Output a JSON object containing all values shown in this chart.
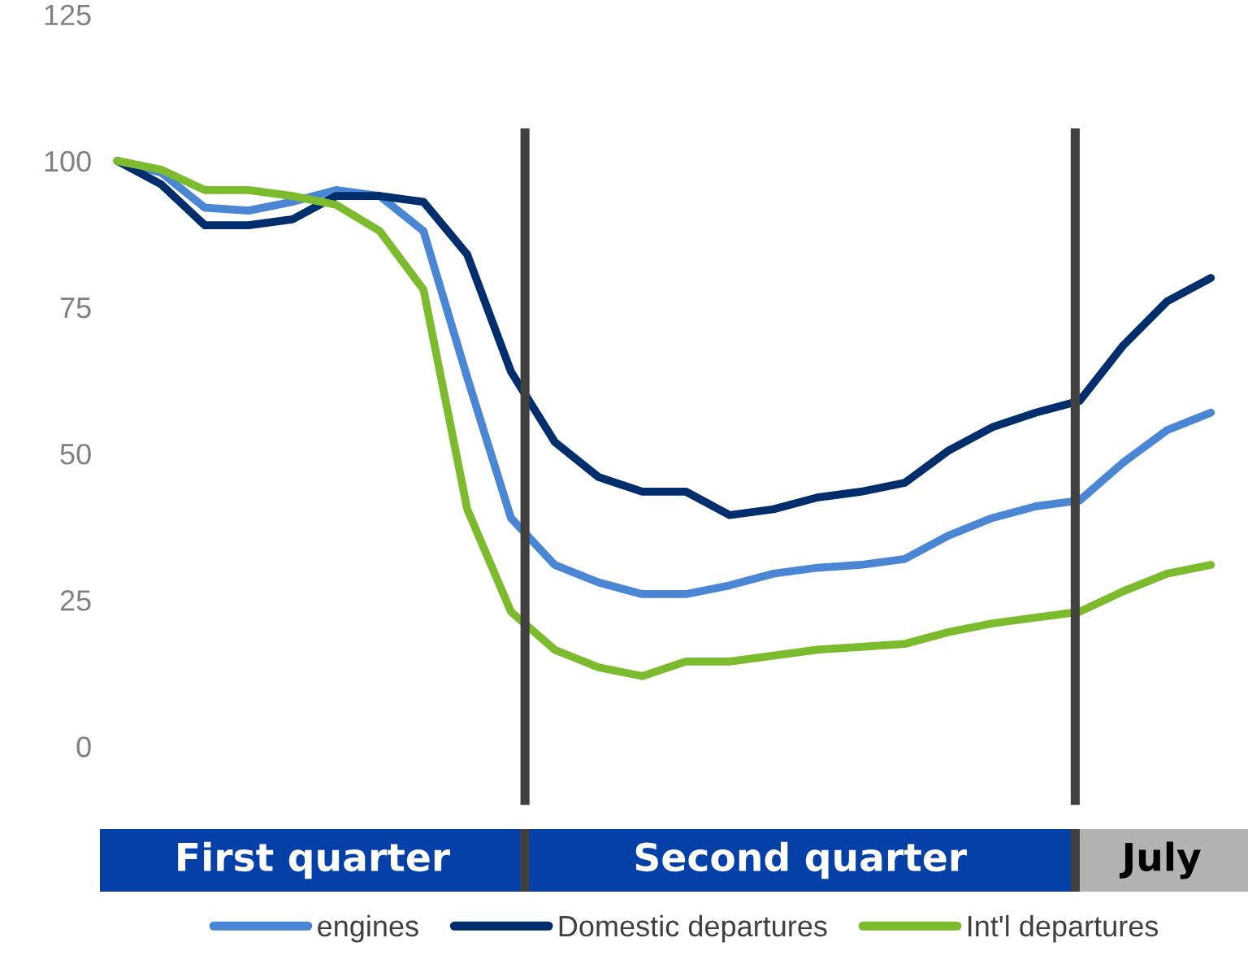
{
  "chart_data": {
    "type": "line",
    "categories": [
      null,
      null,
      null,
      null,
      null,
      null,
      null,
      null,
      null,
      null,
      null,
      null,
      null,
      null,
      null,
      null,
      null,
      null,
      null,
      null,
      null,
      null,
      null,
      null,
      null,
      null
    ],
    "ylim": [
      -10,
      125
    ],
    "yticks": [
      0,
      25,
      50,
      75,
      100,
      125
    ],
    "tick_labels": "y",
    "grid": false,
    "legend": "bottom",
    "marker": "none",
    "line_style": "solid",
    "series": [
      {
        "name": "engines",
        "color": "#4a86d4",
        "values": [
          100,
          98,
          92,
          91.5,
          93,
          95,
          94,
          88,
          63,
          39,
          31,
          28,
          26,
          26,
          27.5,
          29.5,
          30.5,
          31,
          32,
          36,
          39,
          41,
          42,
          48.5,
          54,
          57
        ]
      },
      {
        "name": "Domestic departures",
        "color": "#002d6b",
        "values": [
          100,
          96,
          89,
          89,
          90,
          94,
          94,
          93,
          84,
          64,
          52,
          46,
          43.5,
          43.5,
          39.5,
          40.5,
          42.5,
          43.5,
          45,
          50.5,
          54.5,
          57,
          59,
          68.5,
          76,
          80
        ]
      },
      {
        "name": "Int'l departures",
        "color": "#7dbb2e",
        "values": [
          100,
          98.5,
          95,
          95,
          94,
          92.5,
          88,
          78,
          40.5,
          23,
          16.5,
          13.5,
          12,
          14.5,
          14.5,
          15.5,
          16.5,
          17,
          17.5,
          19.5,
          21,
          22,
          23,
          26.5,
          29.5,
          31
        ]
      }
    ],
    "annotations": [
      "First quarter",
      "Second quarter",
      "July"
    ]
  }
}
